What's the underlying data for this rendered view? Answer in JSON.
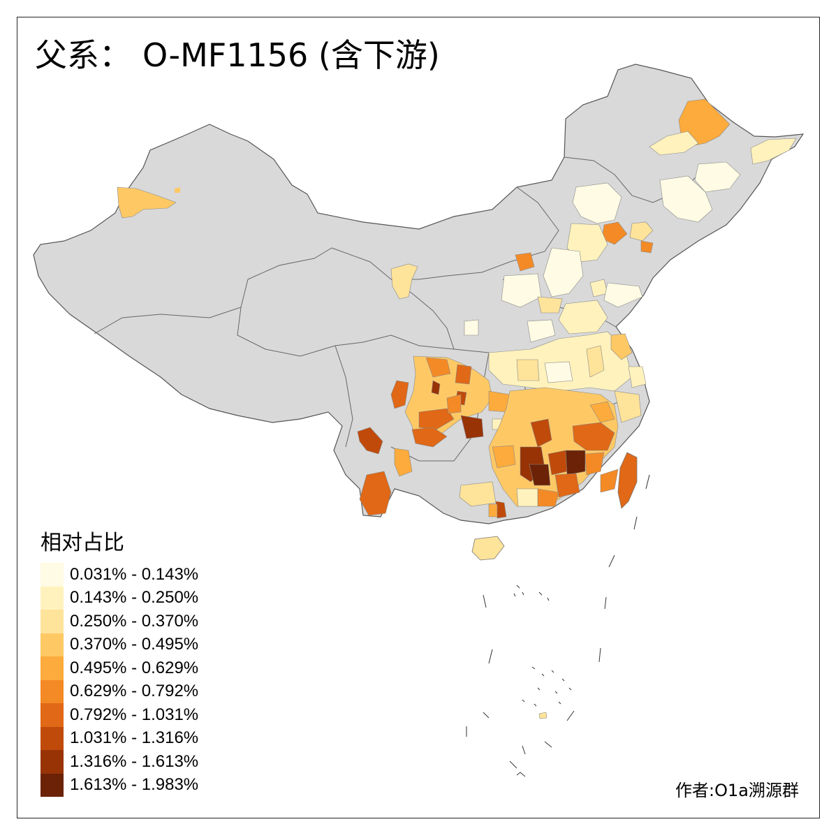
{
  "title": {
    "prefix": "父系：",
    "main": "O-MF1156 (含下游)"
  },
  "legend": {
    "title": "相对占比",
    "classes": [
      {
        "label": "0.031% - 0.143%",
        "color": "#fffbe4"
      },
      {
        "label": "0.143% - 0.250%",
        "color": "#fff2bd"
      },
      {
        "label": "0.250% - 0.370%",
        "color": "#fee39a"
      },
      {
        "label": "0.370% - 0.495%",
        "color": "#fec965"
      },
      {
        "label": "0.495% - 0.629%",
        "color": "#fdab3c"
      },
      {
        "label": "0.629% - 0.792%",
        "color": "#f48a26"
      },
      {
        "label": "0.792% - 1.031%",
        "color": "#e06816"
      },
      {
        "label": "1.031% - 1.316%",
        "color": "#c04a0a"
      },
      {
        "label": "1.316% - 1.613%",
        "color": "#983306"
      },
      {
        "label": "1.613% - 1.983%",
        "color": "#6b2206"
      }
    ]
  },
  "credit": "作者:O1a溯源群",
  "map": {
    "no_data_color": "#d9d9d9",
    "border_color": "#555555"
  }
}
